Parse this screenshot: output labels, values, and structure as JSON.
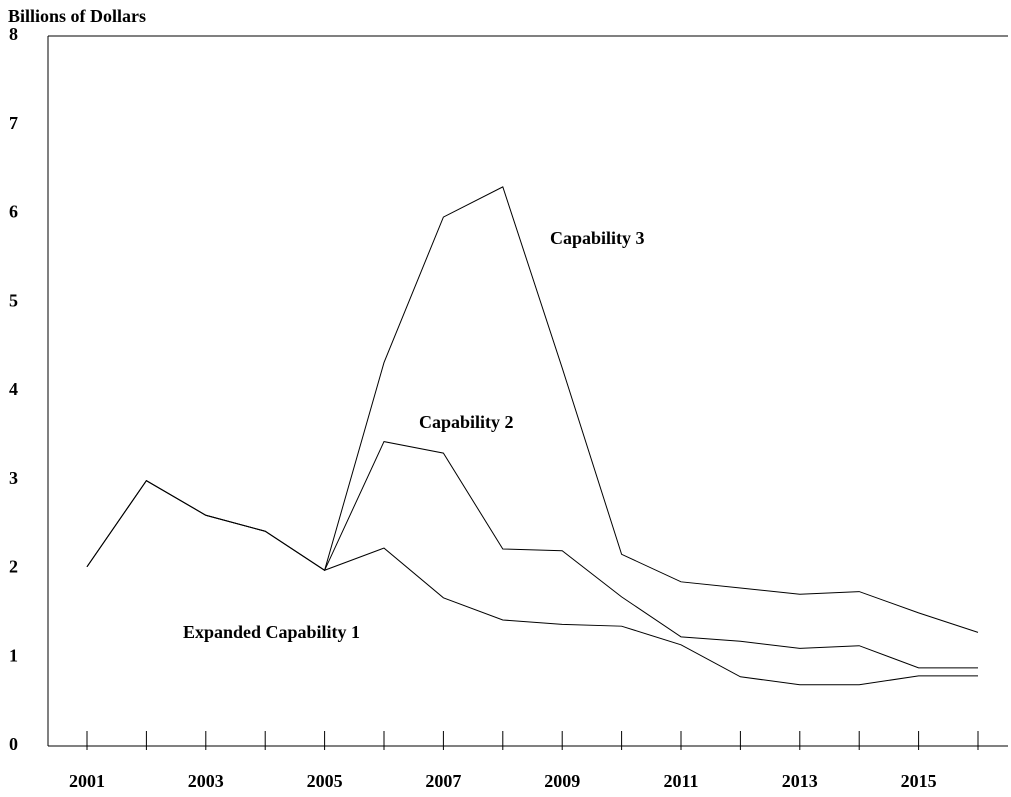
{
  "chart_data": {
    "type": "line",
    "y_label": "Billions of Dollars",
    "categories": [
      "2001",
      null,
      "2003",
      null,
      "2005",
      null,
      "2007",
      null,
      "2009",
      null,
      "2011",
      null,
      "2013",
      null,
      "2015",
      null
    ],
    "series": [
      {
        "name": "Expanded Capability 1",
        "color": "#000000",
        "values": [
          2.02,
          2.99,
          2.6,
          2.42,
          1.98,
          2.23,
          1.67,
          1.42,
          1.37,
          1.35,
          1.14,
          0.78,
          0.69,
          0.69,
          0.79,
          0.79
        ]
      },
      {
        "name": "Capability 2",
        "color": "#000000",
        "values": [
          2.02,
          2.99,
          2.6,
          2.42,
          1.98,
          3.43,
          3.3,
          2.22,
          2.2,
          1.68,
          1.23,
          1.18,
          1.1,
          1.13,
          0.88,
          0.88
        ]
      },
      {
        "name": "Capability 3",
        "color": "#000000",
        "values": [
          2.02,
          2.99,
          2.6,
          2.42,
          1.98,
          4.32,
          5.96,
          6.3,
          4.26,
          2.16,
          1.85,
          1.78,
          1.71,
          1.74,
          1.5,
          1.28
        ]
      }
    ],
    "ylim": [
      0,
      8
    ],
    "yticks": [
      0,
      1,
      2,
      3,
      4,
      5,
      6,
      7,
      8
    ],
    "grid": false
  }
}
